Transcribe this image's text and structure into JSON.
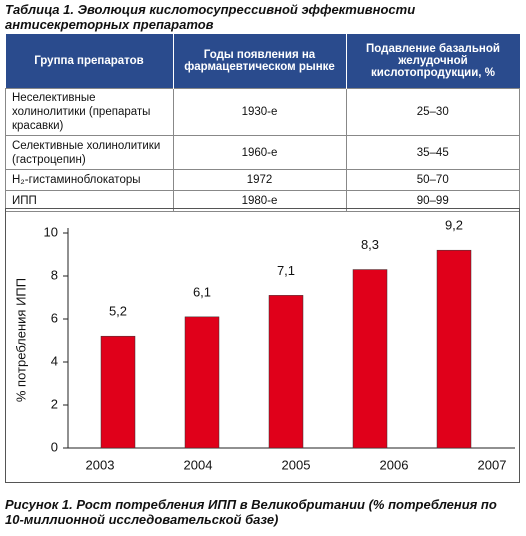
{
  "table_caption": "Таблица 1. Эволюция кислотосупрессивной эффективности антисекреторных препаратов",
  "table": {
    "header": [
      "Группа препаратов",
      "Годы появления на фармацевтическом рынке",
      "Подавление базальной желудочной кислотопродукции, %"
    ],
    "rows": [
      [
        "Неселективные холинолитики (препараты красавки)",
        "1930-е",
        "25–30"
      ],
      [
        "Селективные холинолитики (гастроцепин)",
        "1960-е",
        "35–45"
      ],
      [
        "H₂-гистаминоблокаторы",
        "1972",
        "50–70"
      ],
      [
        "ИПП",
        "1980-е",
        "90–99"
      ]
    ]
  },
  "chart_data": {
    "type": "bar",
    "y_label": "% потребления ИПП",
    "categories": [
      "2003",
      "2004",
      "2005",
      "2006",
      "2007"
    ],
    "values": [
      5.2,
      6.1,
      7.1,
      8.3,
      9.2
    ],
    "value_labels": [
      "5,2",
      "6,1",
      "7,1",
      "8,3",
      "9,2"
    ],
    "color": "#e0001a",
    "ylim": [
      0,
      10
    ],
    "yticks": [
      0,
      2,
      4,
      6,
      8,
      10
    ]
  },
  "figure_caption": "Рисунок 1. Рост потребления ИПП в Великобритании (% потребления по 10-миллионной исследовательской базе)"
}
